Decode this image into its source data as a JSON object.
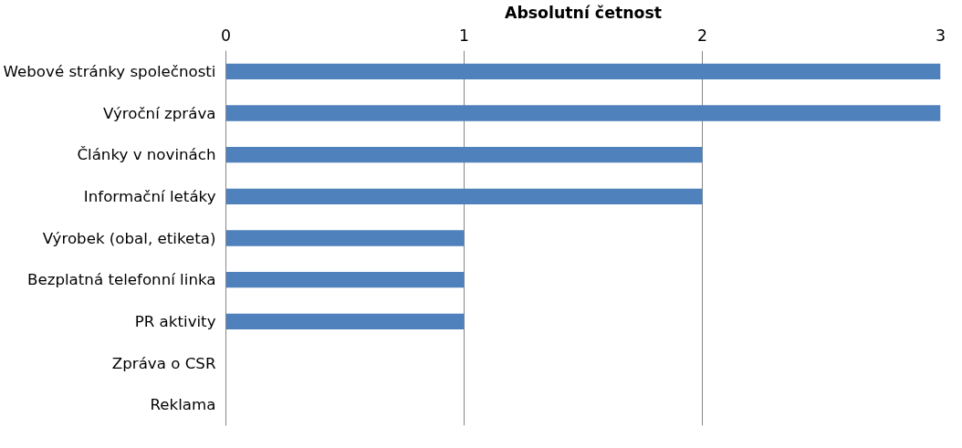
{
  "chart_data": {
    "type": "bar",
    "orientation": "horizontal",
    "xlabel": "Absolutní četnost",
    "categories": [
      "Webové stránky společnosti",
      "Výroční zpráva",
      "Články v novinách",
      "Informační letáky",
      "Výrobek (obal, etiketa)",
      "Bezplatná telefonní linka",
      "PR aktivity",
      "Zpráva o CSR",
      "Reklama"
    ],
    "values": [
      3,
      3,
      2,
      2,
      1,
      1,
      1,
      0,
      0
    ],
    "color": "#4f81bd",
    "xlim": [
      0,
      3
    ],
    "xticks": [
      0,
      1,
      2,
      3
    ],
    "grid": "x"
  }
}
